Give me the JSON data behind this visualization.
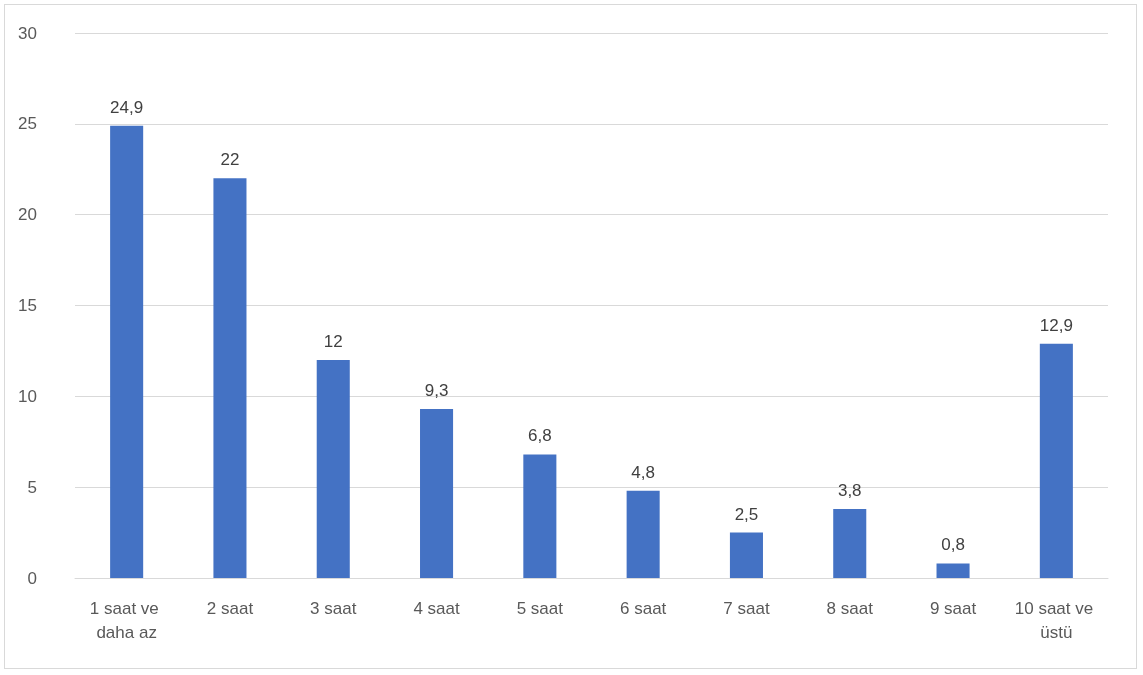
{
  "chart_data": {
    "type": "bar",
    "categories": [
      "1 saat ve daha az",
      "2 saat",
      "3 saat",
      "4 saat",
      "5 saat",
      "6 saat",
      "7 saat",
      "8 saat",
      "9 saat",
      "10 saat ve üstü"
    ],
    "values": [
      24.9,
      22,
      12,
      9.3,
      6.8,
      4.8,
      2.5,
      3.8,
      0.8,
      12.9
    ],
    "value_labels": [
      "24,9",
      "22",
      "12",
      "9,3",
      "6,8",
      "4,8",
      "2,5",
      "3,8",
      "0,8",
      "12,9"
    ],
    "color": "#4472c4",
    "ylim": [
      0,
      30
    ],
    "yticks": [
      0,
      5,
      10,
      15,
      20,
      25,
      30
    ],
    "grid": "y"
  }
}
